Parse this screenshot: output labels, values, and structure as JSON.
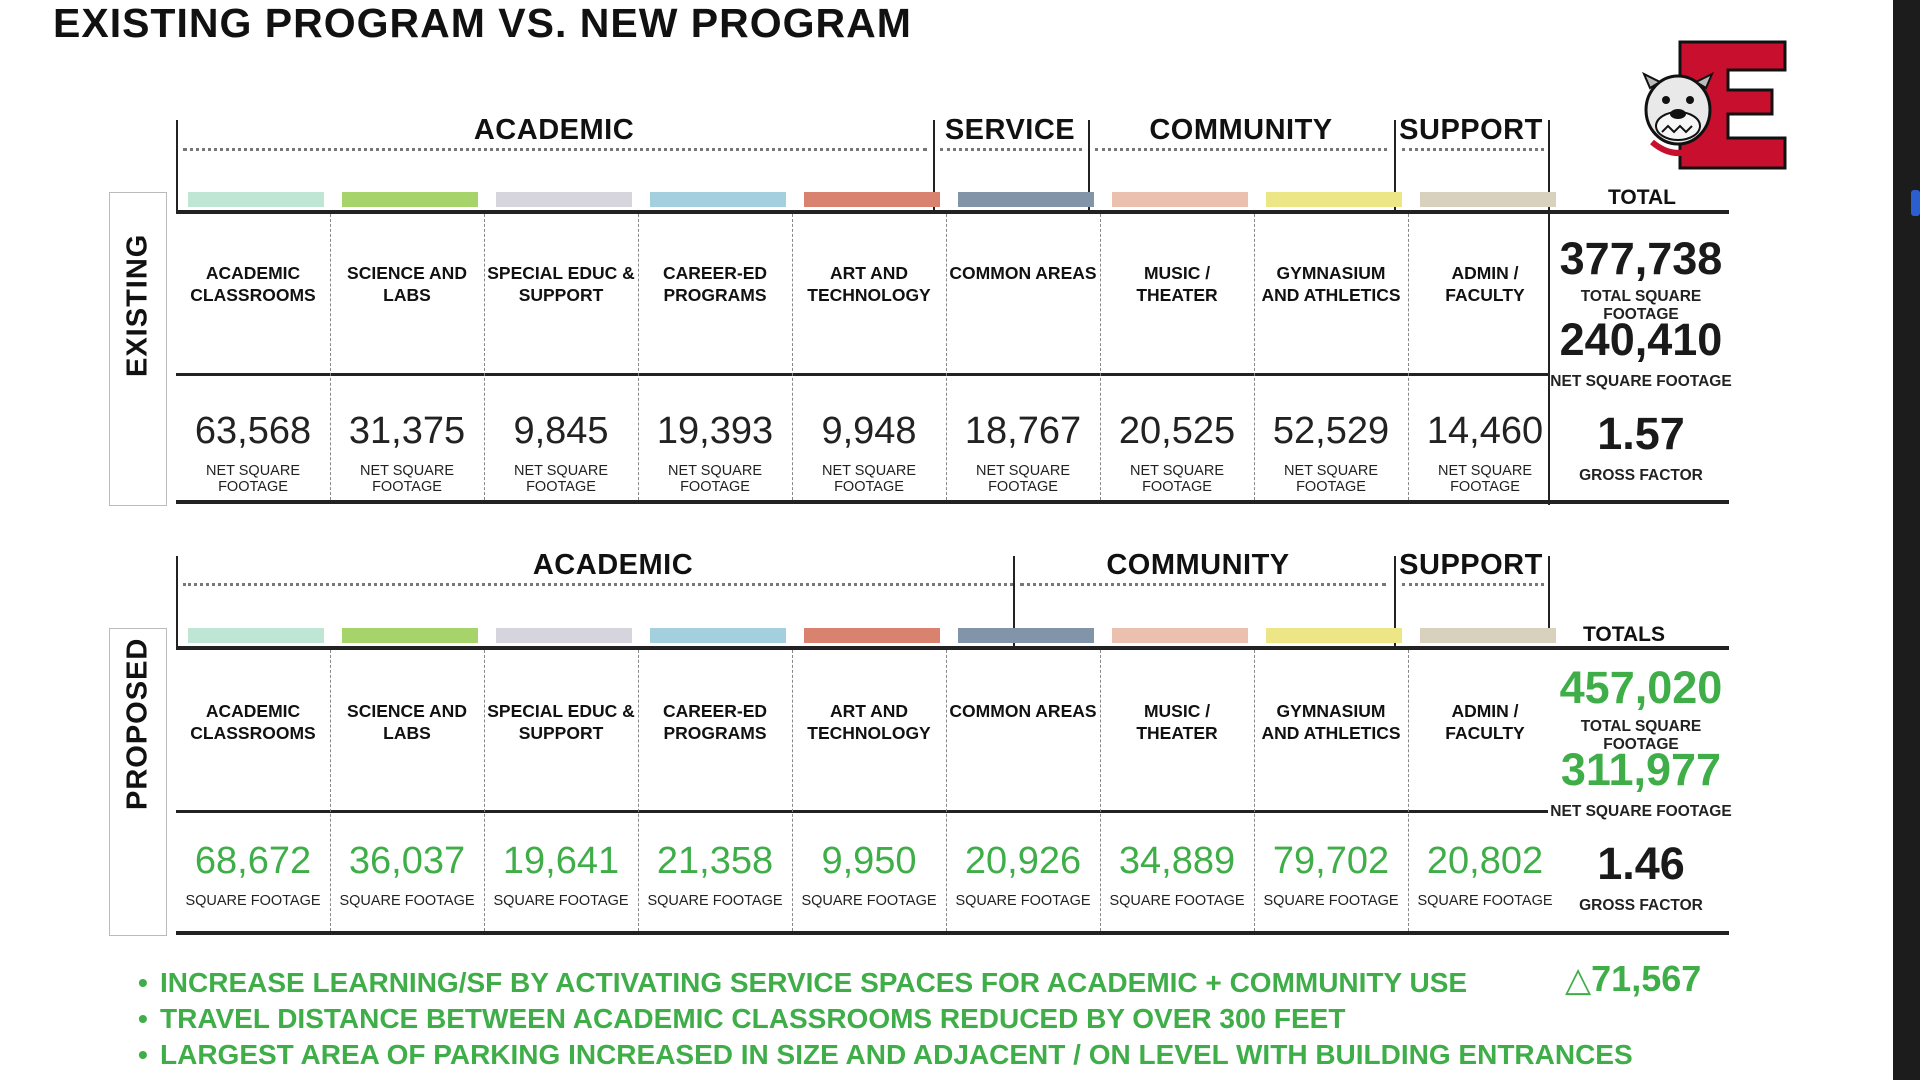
{
  "title": "EXISTING PROGRAM VS. NEW PROGRAM",
  "chart_data": {
    "type": "table",
    "categories": [
      "ACADEMIC CLASSROOMS",
      "SCIENCE AND LABS",
      "SPECIAL EDUC & SUPPORT",
      "CAREER-ED PROGRAMS",
      "ART AND TECHNOLOGY",
      "COMMON AREAS",
      "MUSIC / THEATER",
      "GYMNASIUM AND ATHLETICS",
      "ADMIN / FACULTY"
    ],
    "colors": [
      "#bfe6d4",
      "#a7d46a",
      "#d6d4dd",
      "#a3cfdf",
      "#d9826f",
      "#8194a8",
      "#ecc0ae",
      "#ece687",
      "#d7d1bd"
    ],
    "existing": {
      "side_label": "EXISTING",
      "groups": [
        "ACADEMIC",
        "SERVICE",
        "COMMUNITY",
        "SUPPORT"
      ],
      "labels": [
        [
          "ACADEMIC",
          "CLASSROOMS"
        ],
        [
          "SCIENCE AND",
          "LABS"
        ],
        [
          "SPECIAL EDUC &",
          "SUPPORT"
        ],
        [
          "CAREER-ED",
          "PROGRAMS"
        ],
        [
          "ART AND",
          "TECHNOLOGY"
        ],
        [
          "COMMON AREAS"
        ],
        [
          "MUSIC / THEATER"
        ],
        [
          "GYMNASIUM",
          "AND ATHLETICS"
        ],
        [
          "ADMIN /",
          "FACULTY"
        ]
      ],
      "values": [
        63568,
        31375,
        9845,
        19393,
        9948,
        18767,
        20525,
        52529,
        14460
      ],
      "value_text": [
        "63,568",
        "31,375",
        "9,845",
        "19,393",
        "9,948",
        "18,767",
        "20,525",
        "52,529",
        "14,460"
      ],
      "unit": "NET SQUARE FOOTAGE",
      "total_header": "TOTAL",
      "total_sf": "377,738",
      "total_sf_label": "TOTAL SQUARE FOOTAGE",
      "net_sf": "240,410",
      "net_sf_label": "NET SQUARE FOOTAGE",
      "gross_factor": "1.57",
      "gross_factor_label": "GROSS FACTOR"
    },
    "proposed": {
      "side_label": "PROPOSED",
      "groups": [
        "ACADEMIC",
        "COMMUNITY",
        "SUPPORT"
      ],
      "labels": [
        [
          "ACADEMIC",
          "CLASSROOMS"
        ],
        [
          "SCIENCE AND",
          "LABS"
        ],
        [
          "SPECIAL EDUC &",
          "SUPPORT"
        ],
        [
          "CAREER-ED",
          "PROGRAMS"
        ],
        [
          "ART AND",
          "TECHNOLOGY"
        ],
        [
          "COMMON AREAS"
        ],
        [
          "MUSIC / THEATER"
        ],
        [
          "GYMNASIUM",
          "AND ATHLETICS"
        ],
        [
          "ADMIN /",
          "FACULTY"
        ]
      ],
      "values": [
        68672,
        36037,
        19641,
        21358,
        9950,
        20926,
        34889,
        79702,
        20802
      ],
      "value_text": [
        "68,672",
        "36,037",
        "19,641",
        "21,358",
        "9,950",
        "20,926",
        "34,889",
        "79,702",
        "20,802"
      ],
      "unit": "SQUARE FOOTAGE",
      "total_header": "TOTALS",
      "total_sf": "457,020",
      "total_sf_label": "TOTAL SQUARE FOOTAGE",
      "net_sf": "311,977",
      "net_sf_label": "NET SQUARE FOOTAGE",
      "gross_factor": "1.46",
      "gross_factor_label": "GROSS FACTOR"
    }
  },
  "bullets": [
    "INCREASE LEARNING/SF BY ACTIVATING SERVICE SPACES FOR ACADEMIC + COMMUNITY USE",
    "TRAVEL DISTANCE BETWEEN ACADEMIC CLASSROOMS REDUCED BY OVER 300 FEET",
    "LARGEST AREA OF PARKING INCREASED IN SIZE AND ADJACENT / ON LEVEL WITH BUILDING ENTRANCES"
  ],
  "bullet_char": "•",
  "delta": {
    "symbol": "△",
    "value": "71,567"
  },
  "logo": {
    "letter": "E",
    "icon": "bulldog-mascot-icon",
    "color": "#c8102e"
  }
}
